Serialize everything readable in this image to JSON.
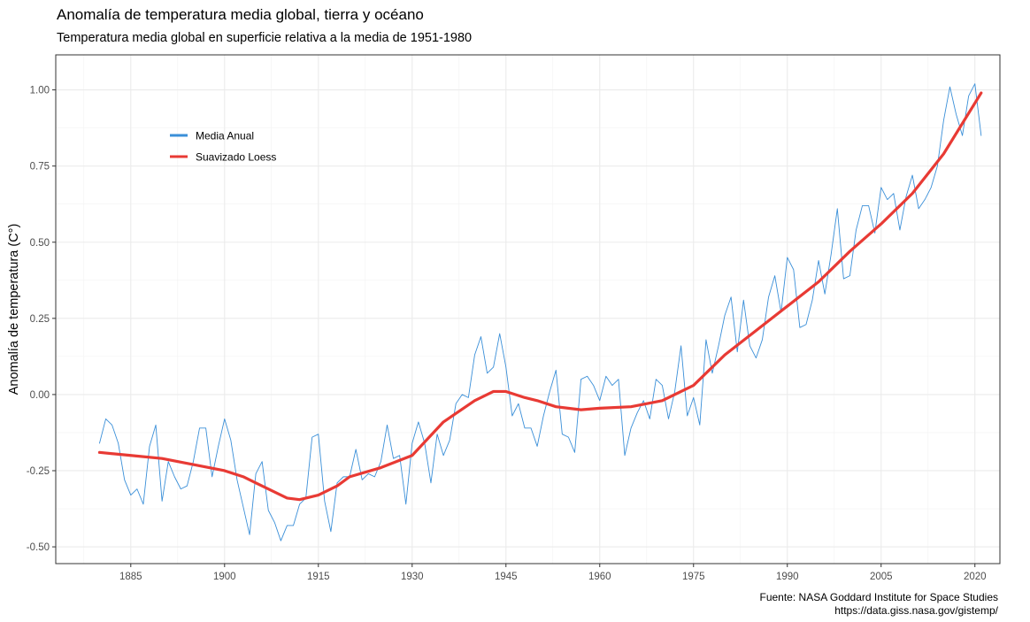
{
  "chart_data": {
    "type": "line",
    "title": "Anomalía de temperatura media global, tierra y océano",
    "subtitle": "Temperatura media global en superficie relativa a la media de 1951-1980",
    "xlabel": "",
    "ylabel": "Anomalía de temperatura (C°)",
    "xlim": [
      1873,
      2024
    ],
    "ylim": [
      -0.555,
      1.115
    ],
    "x_ticks": [
      1885,
      1900,
      1915,
      1930,
      1945,
      1960,
      1975,
      1990,
      2005,
      2020
    ],
    "y_ticks": [
      -0.5,
      -0.25,
      0.0,
      0.25,
      0.5,
      0.75,
      1.0
    ],
    "y_tick_labels": [
      "-0.50",
      "-0.25",
      "0.00",
      "0.25",
      "0.50",
      "0.75",
      "1.00"
    ],
    "grid": true,
    "legend_position": "top-left",
    "series": [
      {
        "name": "Media Anual",
        "color": "#3a8fd8",
        "x": [
          1880,
          1881,
          1882,
          1883,
          1884,
          1885,
          1886,
          1887,
          1888,
          1889,
          1890,
          1891,
          1892,
          1893,
          1894,
          1895,
          1896,
          1897,
          1898,
          1899,
          1900,
          1901,
          1902,
          1903,
          1904,
          1905,
          1906,
          1907,
          1908,
          1909,
          1910,
          1911,
          1912,
          1913,
          1914,
          1915,
          1916,
          1917,
          1918,
          1919,
          1920,
          1921,
          1922,
          1923,
          1924,
          1925,
          1926,
          1927,
          1928,
          1929,
          1930,
          1931,
          1932,
          1933,
          1934,
          1935,
          1936,
          1937,
          1938,
          1939,
          1940,
          1941,
          1942,
          1943,
          1944,
          1945,
          1946,
          1947,
          1948,
          1949,
          1950,
          1951,
          1952,
          1953,
          1954,
          1955,
          1956,
          1957,
          1958,
          1959,
          1960,
          1961,
          1962,
          1963,
          1964,
          1965,
          1966,
          1967,
          1968,
          1969,
          1970,
          1971,
          1972,
          1973,
          1974,
          1975,
          1976,
          1977,
          1978,
          1979,
          1980,
          1981,
          1982,
          1983,
          1984,
          1985,
          1986,
          1987,
          1988,
          1989,
          1990,
          1991,
          1992,
          1993,
          1994,
          1995,
          1996,
          1997,
          1998,
          1999,
          2000,
          2001,
          2002,
          2003,
          2004,
          2005,
          2006,
          2007,
          2008,
          2009,
          2010,
          2011,
          2012,
          2013,
          2014,
          2015,
          2016,
          2017,
          2018,
          2019,
          2020,
          2021
        ],
        "y": [
          -0.16,
          -0.08,
          -0.1,
          -0.16,
          -0.28,
          -0.33,
          -0.31,
          -0.36,
          -0.17,
          -0.1,
          -0.35,
          -0.22,
          -0.27,
          -0.31,
          -0.3,
          -0.22,
          -0.11,
          -0.11,
          -0.27,
          -0.17,
          -0.08,
          -0.15,
          -0.28,
          -0.37,
          -0.46,
          -0.26,
          -0.22,
          -0.38,
          -0.42,
          -0.48,
          -0.43,
          -0.43,
          -0.36,
          -0.34,
          -0.14,
          -0.13,
          -0.35,
          -0.45,
          -0.29,
          -0.27,
          -0.27,
          -0.18,
          -0.28,
          -0.26,
          -0.27,
          -0.22,
          -0.1,
          -0.21,
          -0.2,
          -0.36,
          -0.16,
          -0.09,
          -0.16,
          -0.29,
          -0.13,
          -0.2,
          -0.15,
          -0.03,
          0.0,
          -0.01,
          0.13,
          0.19,
          0.07,
          0.09,
          0.2,
          0.09,
          -0.07,
          -0.03,
          -0.11,
          -0.11,
          -0.17,
          -0.07,
          0.01,
          0.08,
          -0.13,
          -0.14,
          -0.19,
          0.05,
          0.06,
          0.03,
          -0.02,
          0.06,
          0.03,
          0.05,
          -0.2,
          -0.11,
          -0.06,
          -0.02,
          -0.08,
          0.05,
          0.03,
          -0.08,
          0.01,
          0.16,
          -0.07,
          -0.01,
          -0.1,
          0.18,
          0.07,
          0.16,
          0.26,
          0.32,
          0.14,
          0.31,
          0.16,
          0.12,
          0.18,
          0.32,
          0.39,
          0.27,
          0.45,
          0.41,
          0.22,
          0.23,
          0.31,
          0.44,
          0.33,
          0.46,
          0.61,
          0.38,
          0.39,
          0.54,
          0.62,
          0.62,
          0.53,
          0.68,
          0.64,
          0.66,
          0.54,
          0.65,
          0.72,
          0.61,
          0.64,
          0.68,
          0.75,
          0.9,
          1.01,
          0.92,
          0.85,
          0.98,
          1.02,
          0.85
        ]
      },
      {
        "name": "Suavizado Loess",
        "color": "#e83a34",
        "x": [
          1880,
          1885,
          1890,
          1895,
          1900,
          1903,
          1905,
          1910,
          1912,
          1915,
          1918,
          1920,
          1925,
          1930,
          1935,
          1940,
          1943,
          1945,
          1948,
          1950,
          1953,
          1957,
          1960,
          1965,
          1970,
          1975,
          1980,
          1985,
          1990,
          1995,
          2000,
          2005,
          2010,
          2015,
          2021
        ],
        "y": [
          -0.19,
          -0.2,
          -0.21,
          -0.23,
          -0.25,
          -0.27,
          -0.29,
          -0.34,
          -0.345,
          -0.33,
          -0.3,
          -0.27,
          -0.24,
          -0.2,
          -0.09,
          -0.02,
          0.01,
          0.01,
          -0.01,
          -0.02,
          -0.04,
          -0.05,
          -0.045,
          -0.04,
          -0.02,
          0.03,
          0.13,
          0.21,
          0.29,
          0.37,
          0.47,
          0.56,
          0.66,
          0.79,
          0.99
        ]
      }
    ]
  },
  "caption": {
    "source": "Fuente: NASA Goddard Institute for Space Studies",
    "url": "https://data.giss.nasa.gov/gistemp/"
  }
}
